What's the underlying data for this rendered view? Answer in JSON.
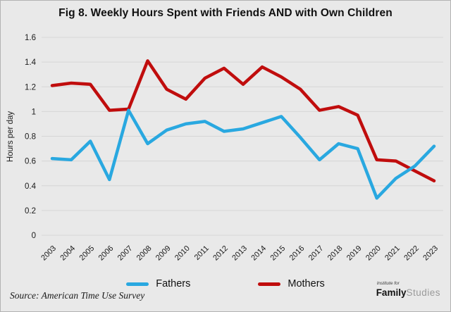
{
  "title": "Fig 8. Weekly Hours Spent with Friends AND with Own Children",
  "source": "Source: American Time Use Survey",
  "logo": {
    "top": "Institute for",
    "family": "Family",
    "studies": "Studies"
  },
  "legend": [
    {
      "label": "Fathers",
      "color": "#29a8e0"
    },
    {
      "label": "Mothers",
      "color": "#c00d0d"
    }
  ],
  "colors": {
    "background": "#e9e9e9",
    "gridline": "#d6d6d6",
    "text": "#1a1a1a",
    "fathers": "#29a8e0",
    "mothers": "#c00d0d"
  },
  "chart_data": {
    "type": "line",
    "title": "Fig 8. Weekly Hours Spent with Friends AND with Own Children",
    "xlabel": "",
    "ylabel": "Hours per day",
    "ylim": [
      0,
      1.6
    ],
    "y_ticks": [
      0,
      0.2,
      0.4,
      0.6,
      0.8,
      1,
      1.2,
      1.4,
      1.6
    ],
    "grid": true,
    "legend_position": "bottom",
    "x_tick_rotation": -45,
    "categories": [
      2003,
      2004,
      2005,
      2006,
      2007,
      2008,
      2009,
      2010,
      2011,
      2012,
      2013,
      2014,
      2015,
      2016,
      2017,
      2018,
      2019,
      2020,
      2021,
      2022,
      2023
    ],
    "series": [
      {
        "name": "Fathers",
        "color": "#29a8e0",
        "values": [
          0.62,
          0.61,
          0.76,
          0.45,
          1.01,
          0.74,
          0.85,
          0.9,
          0.92,
          0.84,
          0.86,
          0.91,
          0.96,
          0.79,
          0.61,
          0.74,
          0.7,
          0.3,
          0.46,
          0.56,
          0.72
        ]
      },
      {
        "name": "Mothers",
        "color": "#c00d0d",
        "values": [
          1.21,
          1.23,
          1.22,
          1.01,
          1.02,
          1.41,
          1.18,
          1.1,
          1.27,
          1.35,
          1.22,
          1.36,
          1.28,
          1.18,
          1.01,
          1.04,
          0.97,
          0.61,
          0.6,
          0.52,
          0.44
        ]
      }
    ]
  }
}
